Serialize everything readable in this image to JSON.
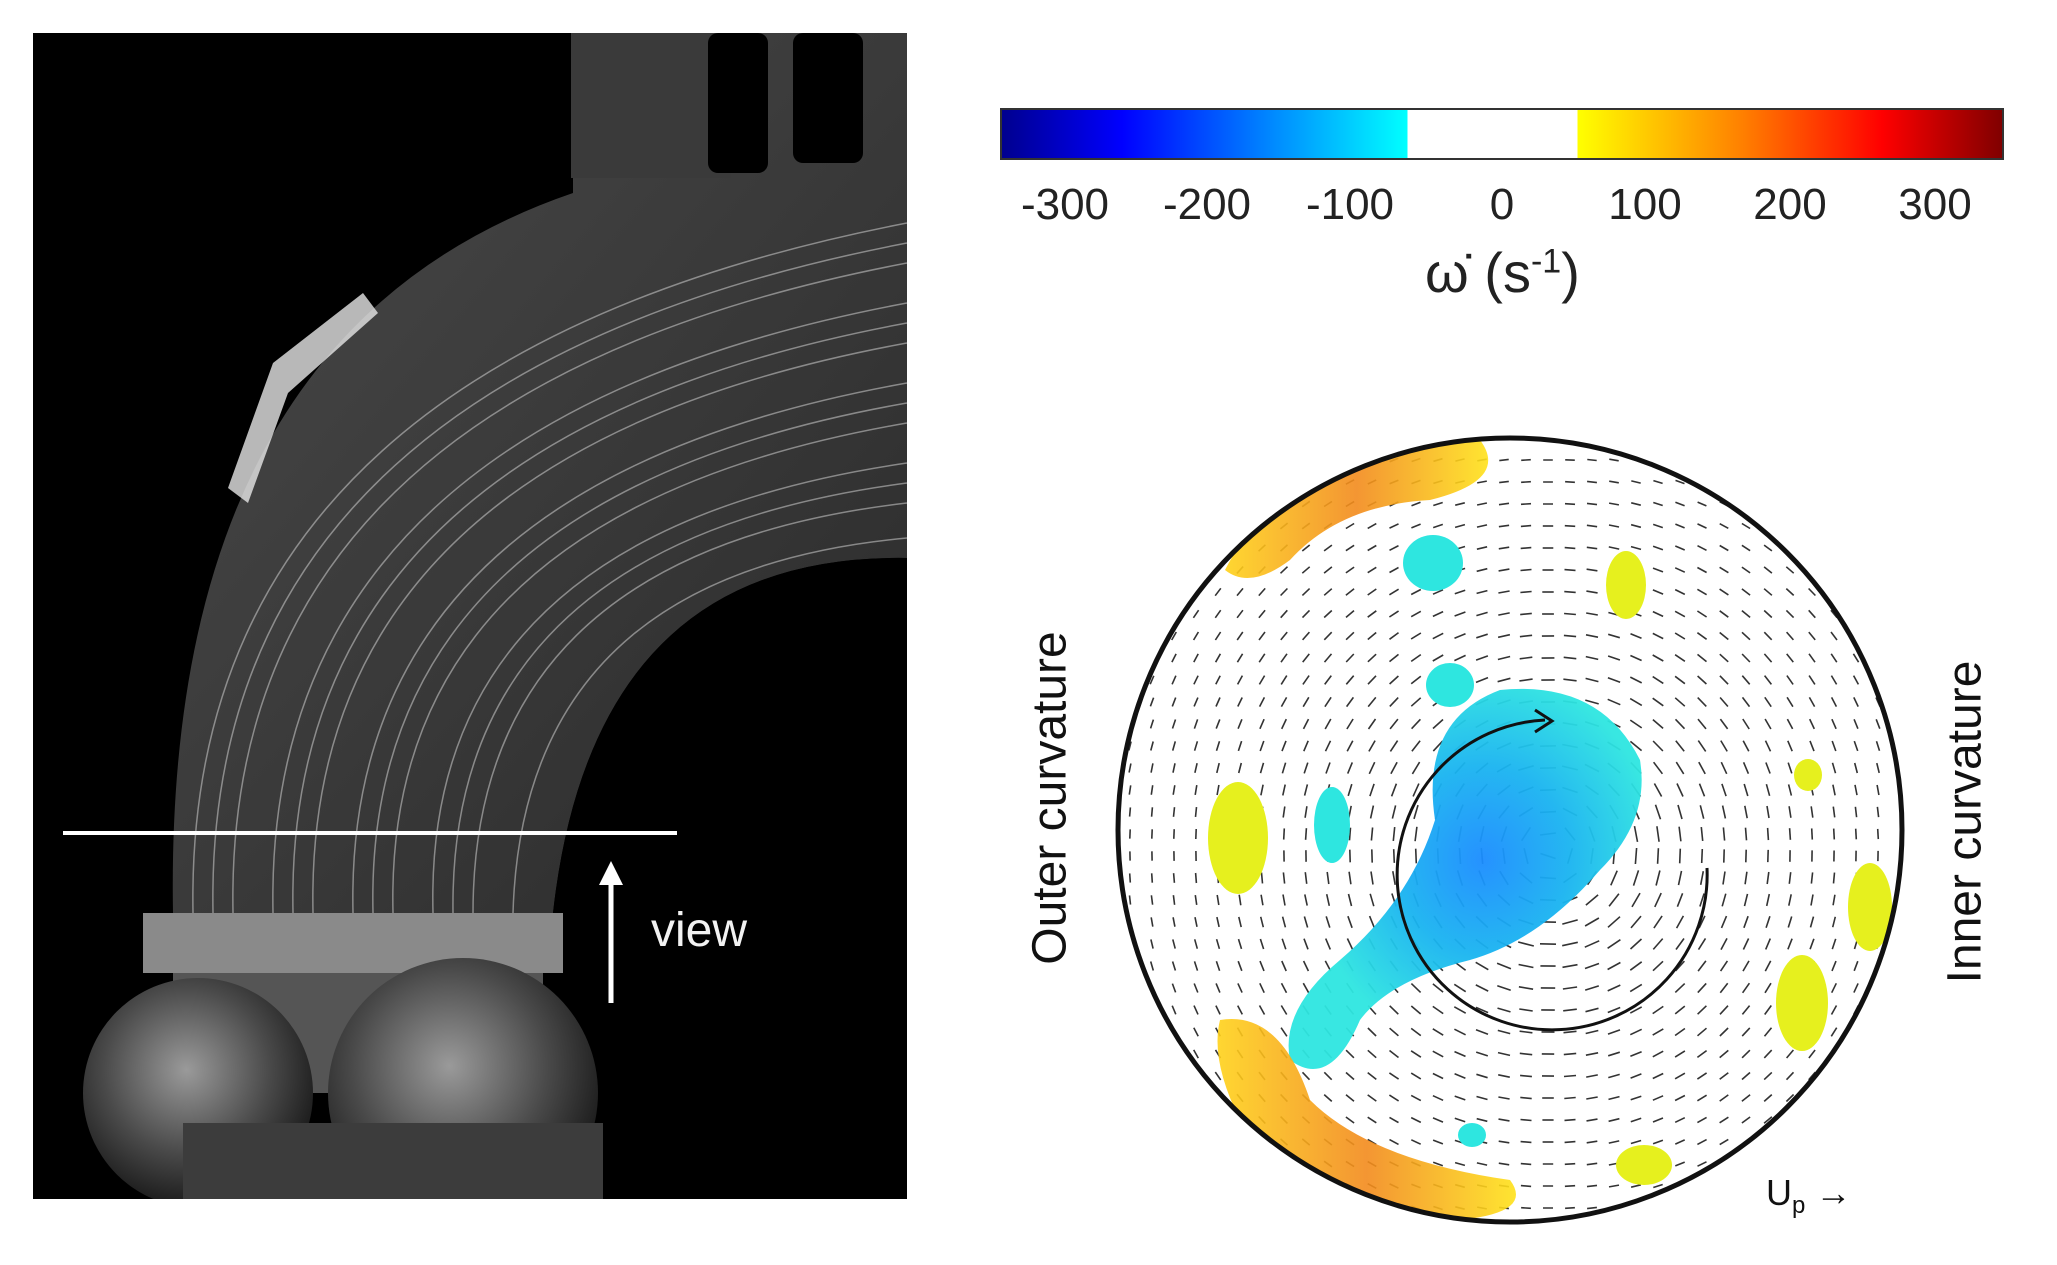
{
  "photo": {
    "view_label": "view"
  },
  "colorbar": {
    "ticks": [
      "-300",
      "-200",
      "-100",
      "0",
      "100",
      "200",
      "300"
    ],
    "label_symbol": "ω̇",
    "label_unit": " (s",
    "label_exp": "-1",
    "label_close": ")",
    "colors": [
      "#00008f",
      "#0000ff",
      "#0080ff",
      "#00ffff",
      "#ffffff",
      "#ffff00",
      "#ff8000",
      "#ff0000",
      "#800000"
    ]
  },
  "vortex": {
    "outer_label": "Outer curvature",
    "inner_label": "Inner curvature",
    "up_label": "U",
    "up_sub": "p",
    "up_arrow": "→"
  }
}
